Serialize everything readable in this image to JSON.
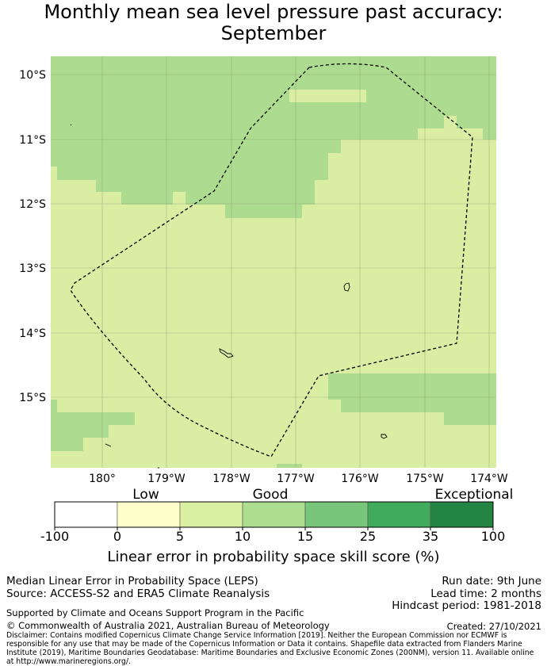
{
  "title_line1": "Monthly mean sea level pressure past accuracy:",
  "title_line2": "September",
  "map": {
    "lat_labels": [
      "10°S",
      "11°S",
      "12°S",
      "13°S",
      "14°S",
      "15°S"
    ],
    "lon_labels": [
      "180°",
      "179°W",
      "178°W",
      "177°W",
      "176°W",
      "175°W",
      "174°W"
    ],
    "boundary": "dashed EEZ boundary line",
    "colors": {
      "light_green": "#d9eda3",
      "mid_green": "#addc90"
    }
  },
  "colorbar": {
    "category_labels": [
      "Low",
      "Good",
      "Exceptional"
    ],
    "tick_labels": [
      "-100",
      "0",
      "5",
      "10",
      "15",
      "25",
      "35",
      "100"
    ],
    "colors": [
      "#ffffff",
      "#ffffcc",
      "#d9f0a3",
      "#addd8e",
      "#78c679",
      "#41ab5d",
      "#238443"
    ],
    "title": "Linear error in probability space skill score (%)"
  },
  "footer": {
    "method": "Median Linear Error in Probability Space (LEPS)",
    "source": "Source: ACCESS-S2 and ERA5 Climate Reanalysis",
    "run_date": "Run date: 9th June",
    "lead_time": "Lead time: 2 months",
    "hindcast": "Hindcast period: 1981-2018",
    "support": "Supported by Climate and Oceans Support Program in the Pacific",
    "copyright": "© Commonwealth of Australia 2021, Australian Bureau of Meteorology",
    "created": "Created: 27/10/2021",
    "disclaimer": "Disclaimer: Contains modified Copernicus Climate Change Service Information [2019]. Neither the European Commission nor ECMWF is responsible for any use that may be made of the Copernicus Information or Data it contains. Shapefile data extracted from Flanders Marine Institute (2019), Maritime Boundaries Geodatabase: Maritime Boundaries and Exclusive Economic Zones (200NM), version 11. Available online at http://www.marineregions.org/."
  }
}
